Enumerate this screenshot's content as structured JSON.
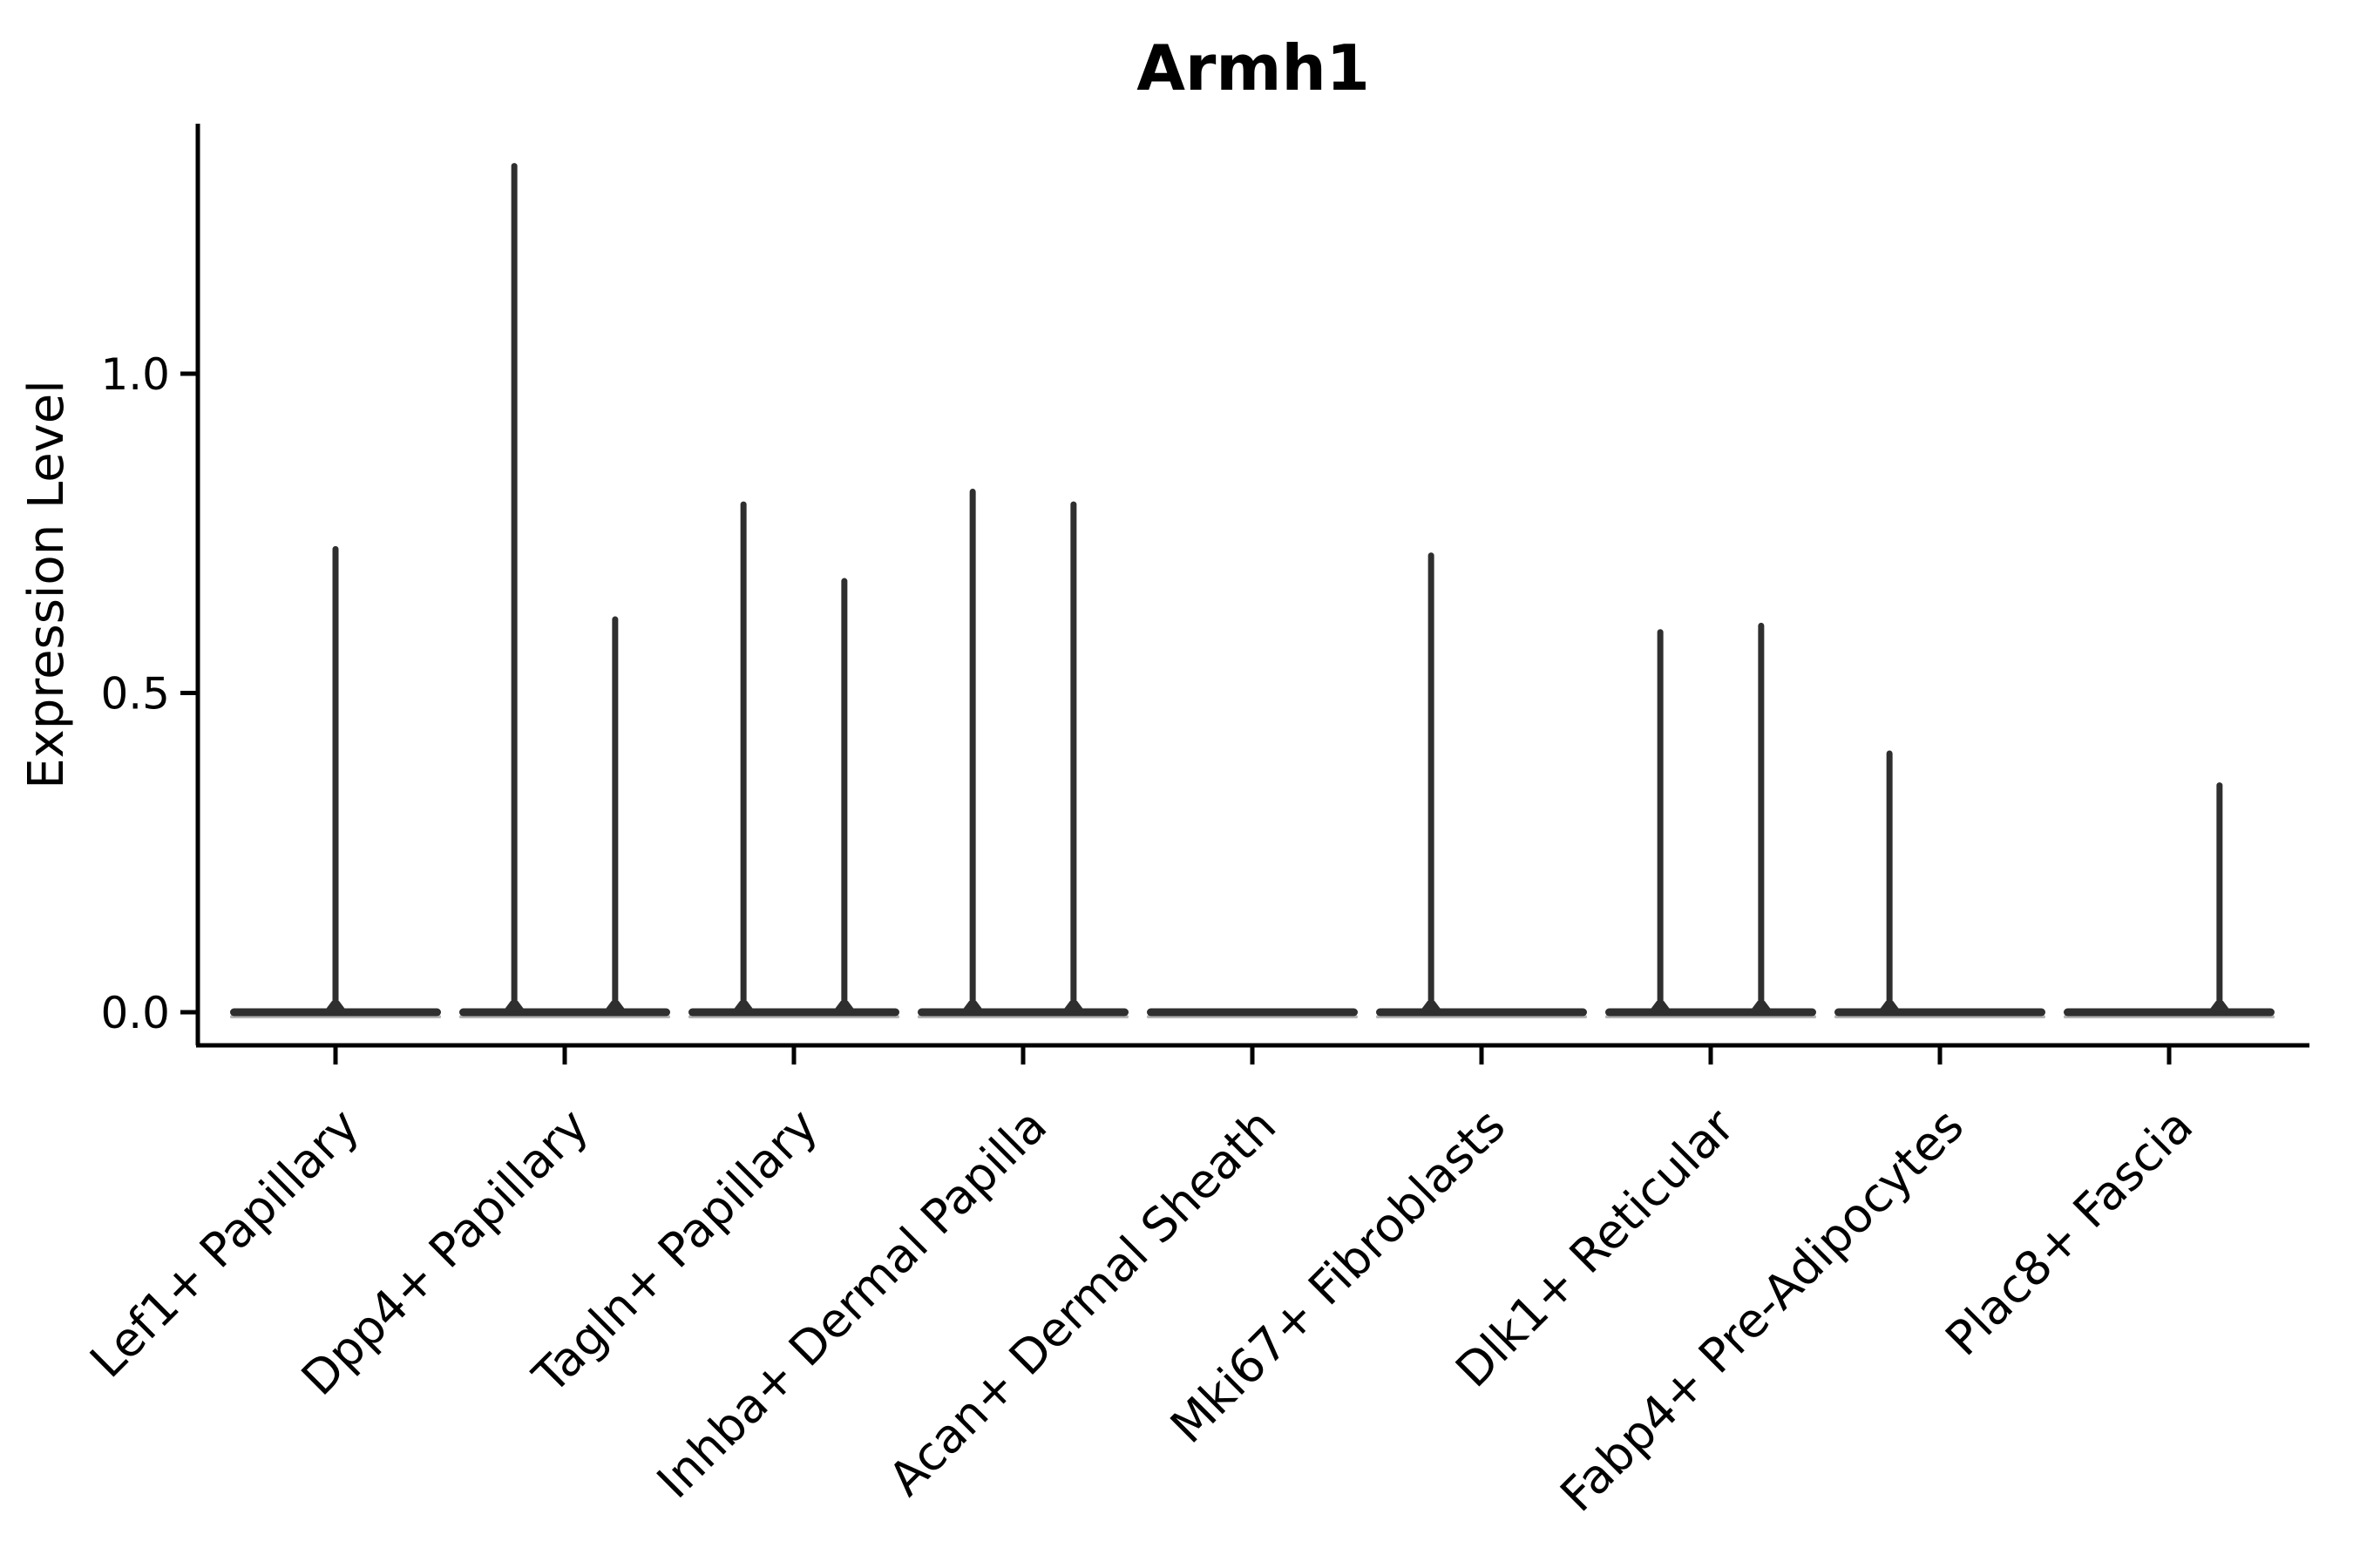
{
  "figure": {
    "background": "#ffffff"
  },
  "chart_data": {
    "type": "violin",
    "title": "Armh1",
    "xlabel": "",
    "ylabel": "Expression Level",
    "ylim": [
      -0.05,
      1.39
    ],
    "yticks": [
      "0.0",
      "0.5",
      "1.0"
    ],
    "ytick_values": [
      0.0,
      0.5,
      1.0
    ],
    "grid": false,
    "legend_position": "none",
    "axis_color": "#000000",
    "violin_color": "#2f2f2f",
    "violin_edge_highlight": "#b4b4b4",
    "categories": [
      "Lef1+ Papillary",
      "Dpp4+ Papillary",
      "Tagln+ Papillary",
      "Inhba+ Dermal Papilla",
      "Acan+ Dermal Sheath",
      "Mki67+ Fibroblasts",
      "Dlk1+ Reticular",
      "Fabp4+ Pre-Adipocytes",
      "Plac8+ Fascia"
    ],
    "series": [
      {
        "category": "Lef1+ Papillary",
        "baseline_value": 0.0,
        "spikes": [
          {
            "offset_frac": 0.0,
            "max": 0.73
          }
        ]
      },
      {
        "category": "Dpp4+ Papillary",
        "baseline_value": 0.0,
        "spikes": [
          {
            "offset_frac": -0.22,
            "max": 1.33
          },
          {
            "offset_frac": 0.22,
            "max": 0.62
          }
        ]
      },
      {
        "category": "Tagln+ Papillary",
        "baseline_value": 0.0,
        "spikes": [
          {
            "offset_frac": -0.22,
            "max": 0.8
          },
          {
            "offset_frac": 0.22,
            "max": 0.68
          }
        ]
      },
      {
        "category": "Inhba+ Dermal Papilla",
        "baseline_value": 0.0,
        "spikes": [
          {
            "offset_frac": -0.22,
            "max": 0.82
          },
          {
            "offset_frac": 0.22,
            "max": 0.8
          }
        ]
      },
      {
        "category": "Acan+ Dermal Sheath",
        "baseline_value": 0.0,
        "spikes": []
      },
      {
        "category": "Mki67+ Fibroblasts",
        "baseline_value": 0.0,
        "spikes": [
          {
            "offset_frac": -0.22,
            "max": 0.72
          }
        ]
      },
      {
        "category": "Dlk1+ Reticular",
        "baseline_value": 0.0,
        "spikes": [
          {
            "offset_frac": -0.22,
            "max": 0.6
          },
          {
            "offset_frac": 0.22,
            "max": 0.61
          }
        ]
      },
      {
        "category": "Fabp4+ Pre-Adipocytes",
        "baseline_value": 0.0,
        "spikes": [
          {
            "offset_frac": -0.22,
            "max": 0.41
          }
        ]
      },
      {
        "category": "Plac8+ Fascia",
        "baseline_value": 0.0,
        "spikes": [
          {
            "offset_frac": 0.22,
            "max": 0.36
          }
        ]
      }
    ]
  }
}
